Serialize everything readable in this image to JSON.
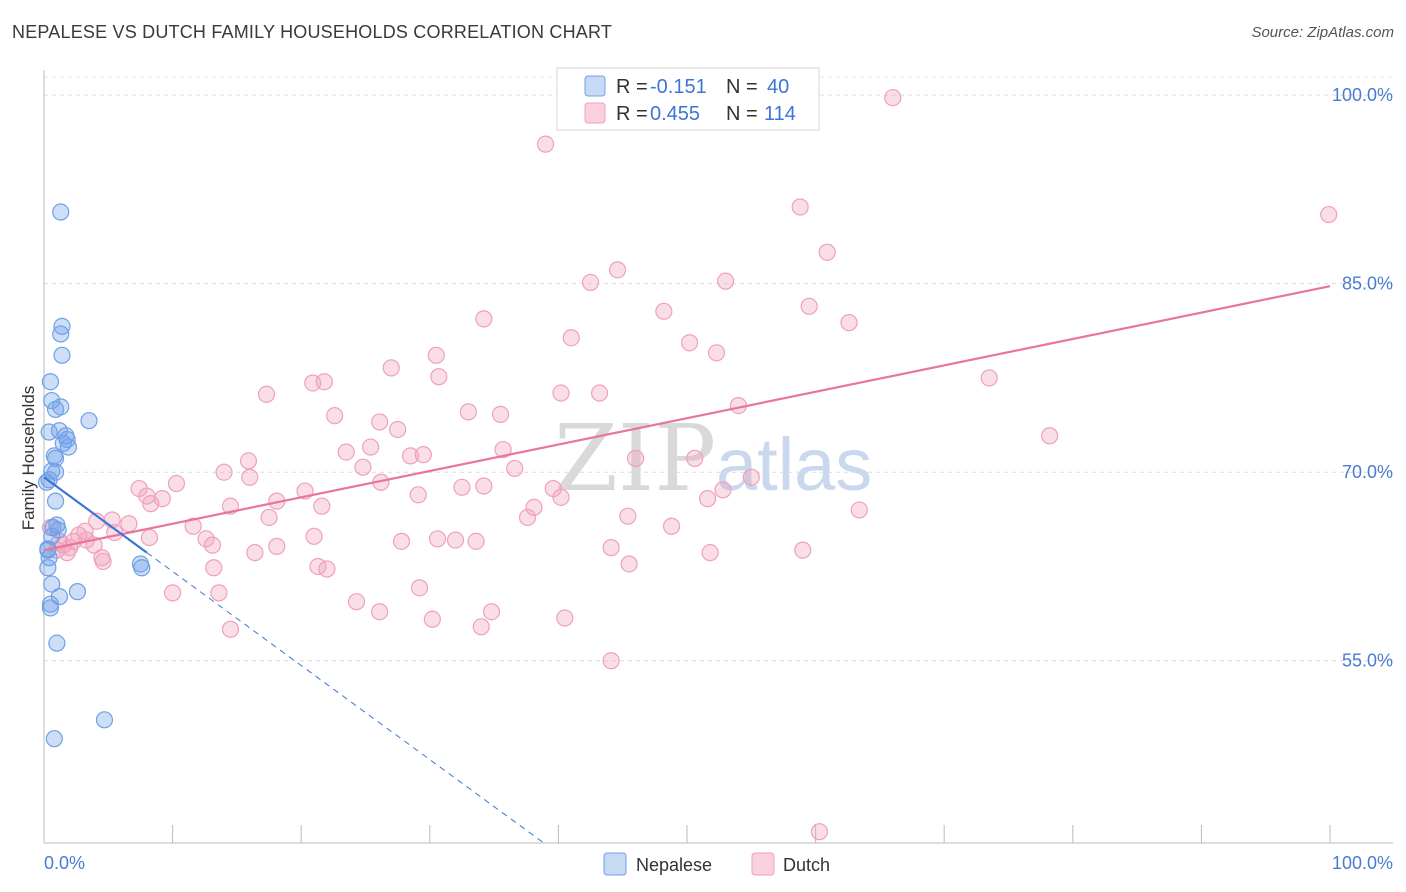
{
  "header": {
    "title": "NEPALESE VS DUTCH FAMILY HOUSEHOLDS CORRELATION CHART",
    "source": "Source: ZipAtlas.com"
  },
  "watermark": {
    "zip": "ZIP",
    "atlas": "atlas"
  },
  "legend": {
    "rows": [
      {
        "r_label": "R =",
        "r_value": "-0.151",
        "n_label": "N =",
        "n_value": "40"
      },
      {
        "r_label": "R =",
        "r_value": "0.455",
        "n_label": "N =",
        "n_value": "114"
      }
    ]
  },
  "bottom_legend": {
    "nepalese": "Nepalese",
    "dutch": "Dutch"
  },
  "chart_data": {
    "type": "scatter",
    "title": "NEPALESE VS DUTCH FAMILY HOUSEHOLDS CORRELATION CHART",
    "xlabel": "",
    "ylabel": "Family Households",
    "xlim": [
      0,
      100
    ],
    "ylim": [
      40.5,
      102
    ],
    "x_tick_labels": [
      "0.0%",
      "100.0%"
    ],
    "y_ticks": [
      55,
      70,
      85,
      100
    ],
    "y_tick_labels": [
      "55.0%",
      "70.0%",
      "85.0%",
      "100.0%"
    ],
    "colors": {
      "nepalese": "#6fa0e8",
      "dutch": "#f0a0bb",
      "nepalese_line": "#3b76d4",
      "dutch_line": "#e8759d"
    },
    "series": [
      {
        "name": "Nepalese",
        "r": -0.151,
        "n": 40,
        "trend": {
          "x": [
            0,
            8
          ],
          "y": [
            69.6,
            63.6
          ]
        },
        "trend_extension": {
          "x": [
            8,
            39
          ],
          "y": [
            63.6,
            40.4
          ]
        },
        "points": [
          [
            1.3,
            90.7
          ],
          [
            1.4,
            81.6
          ],
          [
            1.3,
            81.0
          ],
          [
            1.4,
            79.3
          ],
          [
            0.5,
            77.2
          ],
          [
            0.6,
            75.7
          ],
          [
            0.9,
            75.0
          ],
          [
            1.3,
            75.2
          ],
          [
            3.5,
            74.1
          ],
          [
            1.2,
            73.3
          ],
          [
            0.4,
            73.2
          ],
          [
            1.7,
            72.9
          ],
          [
            1.8,
            72.6
          ],
          [
            1.5,
            72.3
          ],
          [
            1.9,
            72.0
          ],
          [
            0.8,
            71.3
          ],
          [
            0.9,
            71.1
          ],
          [
            0.6,
            70.1
          ],
          [
            0.9,
            70.0
          ],
          [
            0.4,
            69.4
          ],
          [
            0.2,
            69.2
          ],
          [
            0.9,
            67.7
          ],
          [
            1.0,
            65.8
          ],
          [
            0.7,
            65.6
          ],
          [
            0.6,
            64.9
          ],
          [
            0.3,
            63.8
          ],
          [
            0.4,
            63.2
          ],
          [
            0.3,
            62.4
          ],
          [
            7.5,
            62.7
          ],
          [
            7.6,
            62.4
          ],
          [
            0.6,
            61.1
          ],
          [
            2.6,
            60.5
          ],
          [
            1.2,
            60.1
          ],
          [
            0.5,
            59.5
          ],
          [
            0.5,
            59.2
          ],
          [
            1.0,
            56.4
          ],
          [
            4.7,
            50.3
          ],
          [
            0.8,
            48.8
          ],
          [
            0.3,
            63.9
          ],
          [
            1.1,
            65.4
          ]
        ]
      },
      {
        "name": "Dutch",
        "r": 0.455,
        "n": 114,
        "trend": {
          "x": [
            0,
            100
          ],
          "y": [
            63.8,
            84.8
          ]
        },
        "points": [
          [
            66.0,
            99.8
          ],
          [
            39.0,
            96.1
          ],
          [
            58.8,
            91.1
          ],
          [
            99.9,
            90.5
          ],
          [
            60.9,
            87.5
          ],
          [
            44.6,
            86.1
          ],
          [
            42.5,
            85.1
          ],
          [
            53.0,
            85.2
          ],
          [
            59.5,
            83.2
          ],
          [
            48.2,
            82.8
          ],
          [
            34.2,
            82.2
          ],
          [
            62.6,
            81.9
          ],
          [
            41.0,
            80.7
          ],
          [
            50.2,
            80.3
          ],
          [
            30.5,
            79.3
          ],
          [
            52.3,
            79.5
          ],
          [
            27.0,
            78.3
          ],
          [
            30.7,
            77.6
          ],
          [
            73.5,
            77.5
          ],
          [
            20.9,
            77.1
          ],
          [
            21.8,
            77.2
          ],
          [
            40.2,
            76.3
          ],
          [
            43.2,
            76.3
          ],
          [
            17.3,
            76.2
          ],
          [
            54.0,
            75.3
          ],
          [
            33.0,
            74.8
          ],
          [
            35.5,
            74.6
          ],
          [
            22.6,
            74.5
          ],
          [
            26.1,
            74.0
          ],
          [
            27.5,
            73.4
          ],
          [
            78.2,
            72.9
          ],
          [
            35.7,
            71.8
          ],
          [
            23.5,
            71.6
          ],
          [
            25.4,
            72.0
          ],
          [
            29.5,
            71.4
          ],
          [
            28.5,
            71.3
          ],
          [
            46.0,
            71.1
          ],
          [
            50.6,
            71.1
          ],
          [
            15.9,
            70.9
          ],
          [
            36.6,
            70.3
          ],
          [
            24.8,
            70.4
          ],
          [
            14.0,
            70.0
          ],
          [
            16.0,
            69.6
          ],
          [
            55.0,
            69.6
          ],
          [
            26.2,
            69.2
          ],
          [
            10.3,
            69.1
          ],
          [
            32.5,
            68.8
          ],
          [
            34.2,
            68.9
          ],
          [
            52.8,
            68.6
          ],
          [
            20.3,
            68.5
          ],
          [
            39.6,
            68.7
          ],
          [
            7.4,
            68.7
          ],
          [
            8.0,
            68.1
          ],
          [
            29.1,
            68.2
          ],
          [
            40.2,
            68.0
          ],
          [
            9.2,
            67.9
          ],
          [
            8.3,
            67.5
          ],
          [
            18.1,
            67.7
          ],
          [
            21.6,
            67.3
          ],
          [
            51.6,
            67.9
          ],
          [
            14.5,
            67.3
          ],
          [
            38.1,
            67.2
          ],
          [
            63.4,
            67.0
          ],
          [
            45.4,
            66.5
          ],
          [
            37.6,
            66.4
          ],
          [
            5.3,
            66.2
          ],
          [
            17.5,
            66.4
          ],
          [
            6.6,
            65.9
          ],
          [
            11.6,
            65.7
          ],
          [
            21.0,
            64.9
          ],
          [
            8.2,
            64.8
          ],
          [
            48.8,
            65.7
          ],
          [
            1.2,
            64.5
          ],
          [
            2.3,
            64.5
          ],
          [
            3.3,
            64.6
          ],
          [
            12.6,
            64.7
          ],
          [
            13.1,
            64.2
          ],
          [
            16.4,
            63.6
          ],
          [
            18.1,
            64.1
          ],
          [
            27.8,
            64.5
          ],
          [
            30.6,
            64.7
          ],
          [
            32.0,
            64.6
          ],
          [
            33.6,
            64.5
          ],
          [
            1.0,
            63.8
          ],
          [
            1.8,
            63.6
          ],
          [
            2.0,
            64.0
          ],
          [
            44.1,
            64.0
          ],
          [
            51.8,
            63.6
          ],
          [
            4.5,
            63.2
          ],
          [
            4.6,
            62.9
          ],
          [
            13.2,
            62.4
          ],
          [
            21.3,
            62.5
          ],
          [
            45.5,
            62.7
          ],
          [
            22.0,
            62.3
          ],
          [
            29.2,
            60.8
          ],
          [
            10.0,
            60.4
          ],
          [
            13.6,
            60.4
          ],
          [
            24.3,
            59.7
          ],
          [
            26.1,
            58.9
          ],
          [
            34.8,
            58.9
          ],
          [
            40.5,
            58.4
          ],
          [
            14.5,
            57.5
          ],
          [
            30.2,
            58.3
          ],
          [
            34.0,
            57.7
          ],
          [
            44.1,
            55.0
          ],
          [
            60.3,
            41.4
          ],
          [
            59.0,
            63.8
          ],
          [
            2.7,
            65.0
          ],
          [
            4.1,
            66.1
          ],
          [
            3.2,
            65.3
          ],
          [
            0.5,
            65.6
          ],
          [
            1.5,
            64.2
          ],
          [
            5.5,
            65.2
          ],
          [
            3.9,
            64.2
          ]
        ]
      }
    ]
  }
}
